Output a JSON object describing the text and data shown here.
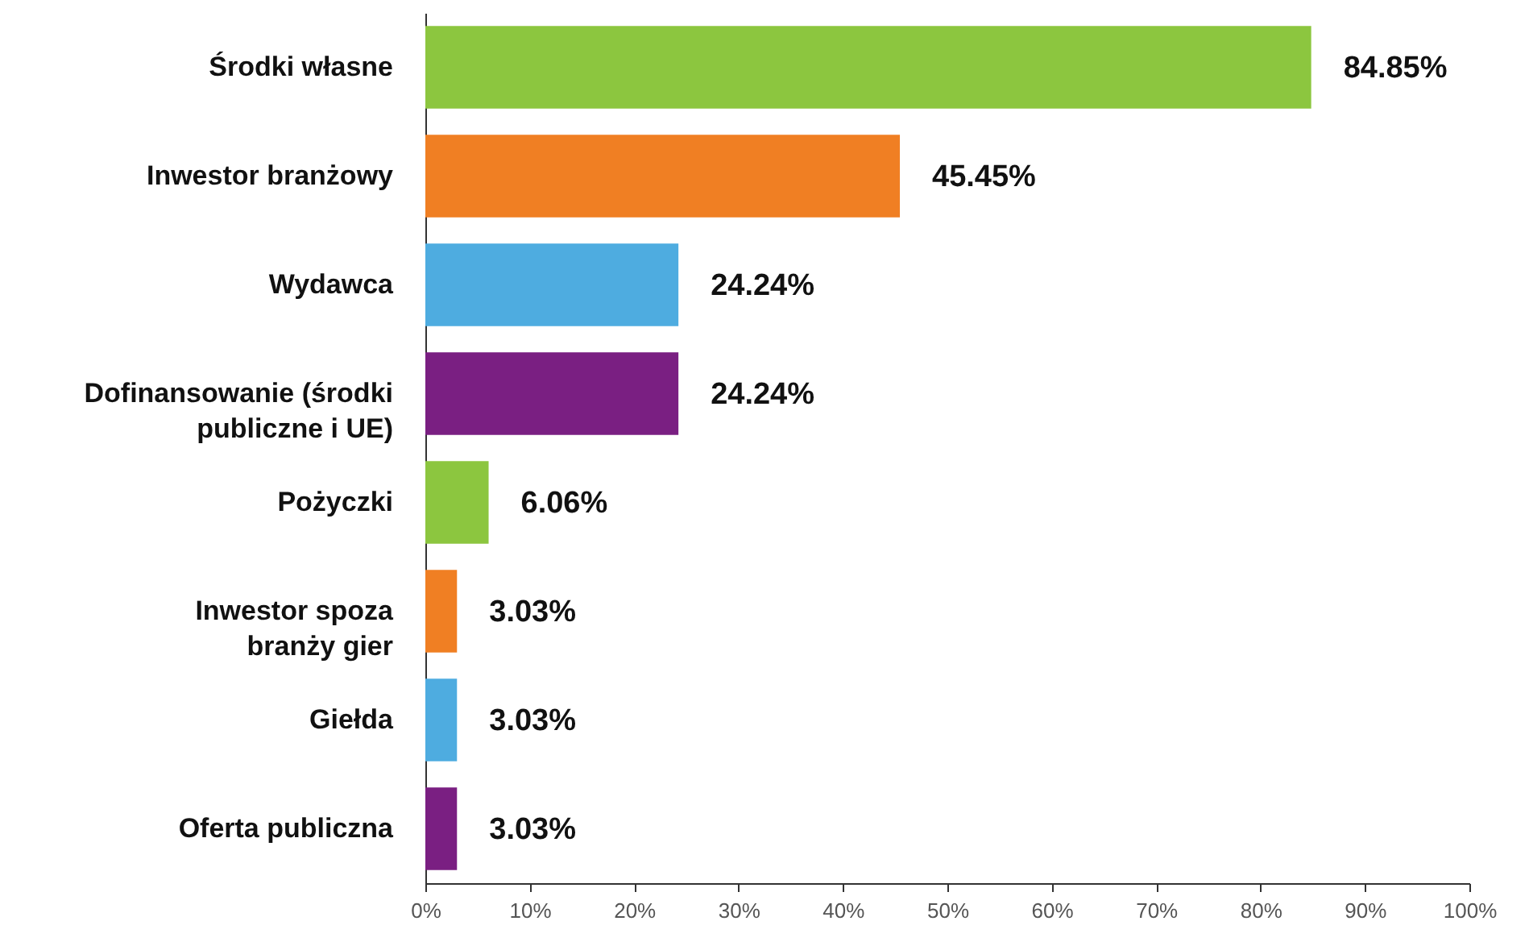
{
  "chart_data": {
    "type": "bar",
    "orientation": "horizontal",
    "categories": [
      "Środki własne",
      "Inwestor branżowy",
      "Wydawca",
      "Dofinansowanie (środki publiczne i UE)",
      "Pożyczki",
      "Inwestor spoza branży gier",
      "Giełda",
      "Oferta publiczna"
    ],
    "values": [
      84.85,
      45.45,
      24.24,
      24.24,
      6.06,
      3.03,
      3.03,
      3.03
    ],
    "value_labels": [
      "84.85%",
      "45.45%",
      "24.24%",
      "24.24%",
      "6.06%",
      "3.03%",
      "3.03%",
      "3.03%"
    ],
    "colors": [
      "#8cc63f",
      "#f07f23",
      "#4eace0",
      "#7a1f82",
      "#8cc63f",
      "#f07f23",
      "#4eace0",
      "#7a1f82"
    ],
    "xlim": [
      0,
      100
    ],
    "xticks": [
      {
        "value": 0,
        "label": "0%"
      },
      {
        "value": 10,
        "label": "10%"
      },
      {
        "value": 20,
        "label": "20%"
      },
      {
        "value": 30,
        "label": "30%"
      },
      {
        "value": 40,
        "label": "40%"
      },
      {
        "value": 50,
        "label": "50%"
      },
      {
        "value": 60,
        "label": "60%"
      },
      {
        "value": 70,
        "label": "70%"
      },
      {
        "value": 80,
        "label": "80%"
      },
      {
        "value": 90,
        "label": "90%"
      },
      {
        "value": 100,
        "label": "100%"
      }
    ],
    "grid": false
  }
}
